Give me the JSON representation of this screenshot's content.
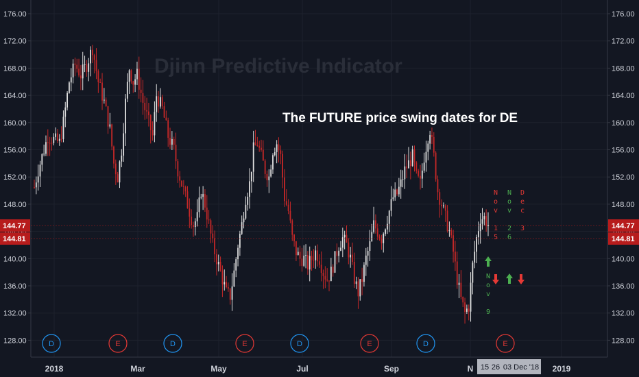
{
  "chart_data": {
    "type": "candlestick",
    "watermark": "Djinn Predictive Indicator",
    "annotation": "The FUTURE price  swing dates for DE",
    "ylim": [
      126,
      178
    ],
    "y_ticks": [
      "176.00",
      "172.00",
      "168.00",
      "164.00",
      "160.00",
      "156.00",
      "152.00",
      "148.00",
      "144.00",
      "140.00",
      "136.00",
      "132.00",
      "128.00"
    ],
    "y_tick_values": [
      176,
      172,
      168,
      164,
      160,
      156,
      152,
      148,
      144,
      140,
      136,
      132,
      128
    ],
    "x_ticks": [
      "2018",
      "Mar",
      "May",
      "Jul",
      "Sep",
      "N",
      "2019"
    ],
    "price_badges": [
      {
        "label": "144.77",
        "value": 144.77,
        "color": "#b71c1c"
      },
      {
        "label": "144.81",
        "value": 144.81,
        "color": "#b71c1c"
      }
    ],
    "crosshair_labels": [
      "15",
      "26",
      "03 Dec '18"
    ],
    "events": [
      {
        "label": "D",
        "color": "#2196f3"
      },
      {
        "label": "E",
        "color": "#e53935"
      },
      {
        "label": "D",
        "color": "#2196f3"
      },
      {
        "label": "E",
        "color": "#e53935"
      },
      {
        "label": "D",
        "color": "#2196f3"
      },
      {
        "label": "E",
        "color": "#e53935"
      },
      {
        "label": "D",
        "color": "#2196f3"
      },
      {
        "label": "E",
        "color": "#e53935"
      }
    ],
    "swing_dates": [
      {
        "month": "Nov",
        "day": "15",
        "color": "#e53935"
      },
      {
        "month": "Nov",
        "day": "26",
        "color": "#4caf50"
      },
      {
        "month": "Dec",
        "day": "3",
        "color": "#e53935"
      },
      {
        "month": "Nov",
        "day": "9",
        "color": "#4caf50"
      }
    ],
    "arrows": [
      {
        "dir": "up",
        "color": "#4caf50"
      },
      {
        "dir": "down",
        "color": "#e53935"
      },
      {
        "dir": "up",
        "color": "#4caf50"
      },
      {
        "dir": "down",
        "color": "#e53935"
      }
    ],
    "colors": {
      "up": "#e0e0e0",
      "down": "#c62828",
      "background": "#131722",
      "axis": "#d1d4dc"
    },
    "price_path": [
      [
        0,
        150.5
      ],
      [
        2,
        153
      ],
      [
        4,
        155
      ],
      [
        7,
        158
      ],
      [
        10,
        157.5
      ],
      [
        13,
        157
      ],
      [
        15,
        160
      ],
      [
        18,
        166
      ],
      [
        21,
        168.5
      ],
      [
        24,
        167
      ],
      [
        27,
        168.5
      ],
      [
        30,
        171
      ],
      [
        33,
        166
      ],
      [
        36,
        163
      ],
      [
        39,
        159
      ],
      [
        41,
        154
      ],
      [
        43,
        152
      ],
      [
        45,
        156
      ],
      [
        47,
        163
      ],
      [
        49,
        168
      ],
      [
        51,
        166
      ],
      [
        53,
        167
      ],
      [
        56,
        163
      ],
      [
        58,
        161
      ],
      [
        61,
        158
      ],
      [
        63,
        164
      ],
      [
        66,
        162
      ],
      [
        69,
        158
      ],
      [
        72,
        156
      ],
      [
        74,
        153
      ],
      [
        76,
        151
      ],
      [
        78,
        149
      ],
      [
        80,
        147
      ],
      [
        82,
        145
      ],
      [
        84,
        146
      ],
      [
        86,
        150
      ],
      [
        88,
        148
      ],
      [
        90,
        145
      ],
      [
        92,
        142
      ],
      [
        95,
        139
      ],
      [
        97,
        137
      ],
      [
        99,
        135
      ],
      [
        101,
        134.5
      ],
      [
        103,
        138
      ],
      [
        105,
        142
      ],
      [
        107,
        145
      ],
      [
        109,
        149
      ],
      [
        111,
        151
      ],
      [
        113,
        156
      ],
      [
        115,
        157
      ],
      [
        117,
        155
      ],
      [
        119,
        153
      ],
      [
        121,
        152
      ],
      [
        123,
        156
      ],
      [
        125,
        157
      ],
      [
        127,
        155
      ],
      [
        129,
        149
      ],
      [
        131,
        147
      ],
      [
        133,
        143
      ],
      [
        135,
        141
      ],
      [
        137,
        140
      ],
      [
        139,
        140
      ],
      [
        141,
        139
      ],
      [
        143,
        140
      ],
      [
        145,
        141
      ],
      [
        147,
        140
      ],
      [
        149,
        138
      ],
      [
        151,
        137
      ],
      [
        153,
        138
      ],
      [
        155,
        140
      ],
      [
        157,
        142
      ],
      [
        159,
        143
      ],
      [
        161,
        142
      ],
      [
        163,
        140
      ],
      [
        165,
        137
      ],
      [
        167,
        135
      ],
      [
        169,
        137
      ],
      [
        171,
        140
      ],
      [
        173,
        142
      ],
      [
        175,
        145
      ],
      [
        177,
        144
      ],
      [
        179,
        143
      ],
      [
        181,
        145
      ],
      [
        183,
        147
      ],
      [
        185,
        149
      ],
      [
        187,
        149.5
      ],
      [
        189,
        151
      ],
      [
        191,
        153
      ],
      [
        193,
        154
      ],
      [
        195,
        155
      ],
      [
        197,
        152
      ],
      [
        199,
        151
      ],
      [
        201,
        155
      ],
      [
        203,
        158
      ],
      [
        204,
        159
      ],
      [
        206,
        155
      ],
      [
        208,
        150
      ],
      [
        210,
        148
      ],
      [
        212,
        146
      ],
      [
        214,
        144
      ],
      [
        216,
        141
      ],
      [
        218,
        137
      ],
      [
        220,
        134
      ],
      [
        222,
        132
      ],
      [
        224,
        133
      ],
      [
        226,
        139
      ],
      [
        228,
        143
      ],
      [
        230,
        146
      ],
      [
        232,
        146
      ],
      [
        234,
        145
      ]
    ]
  }
}
